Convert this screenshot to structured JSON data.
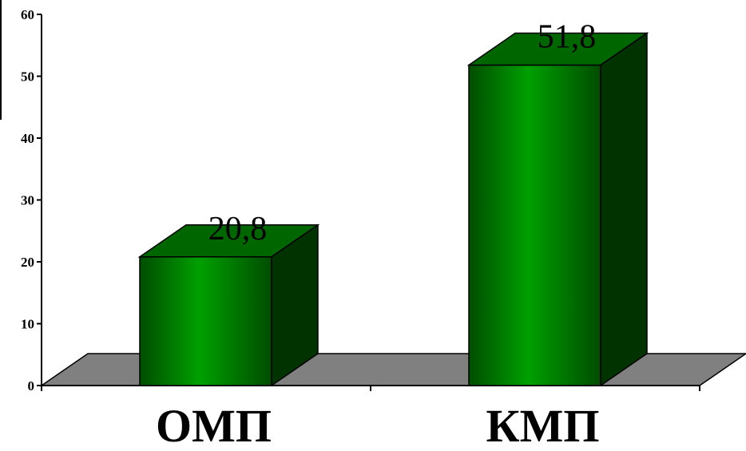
{
  "chart_data": {
    "type": "bar",
    "categories": [
      "ОМП",
      "КМП"
    ],
    "values": [
      20.8,
      51.8
    ],
    "data_labels": [
      "20,8",
      "51,8"
    ],
    "title": "",
    "xlabel": "",
    "ylabel": "",
    "ylim": [
      0,
      60
    ],
    "y_ticks": [
      "0",
      "10",
      "20",
      "30",
      "40",
      "50",
      "60"
    ],
    "grid": false,
    "style": "3d-column",
    "colors": {
      "bar_front_dark": "#004d00",
      "bar_front_light": "#00a000",
      "bar_top": "#006600",
      "bar_side": "#003300",
      "floor": "#808080"
    }
  }
}
